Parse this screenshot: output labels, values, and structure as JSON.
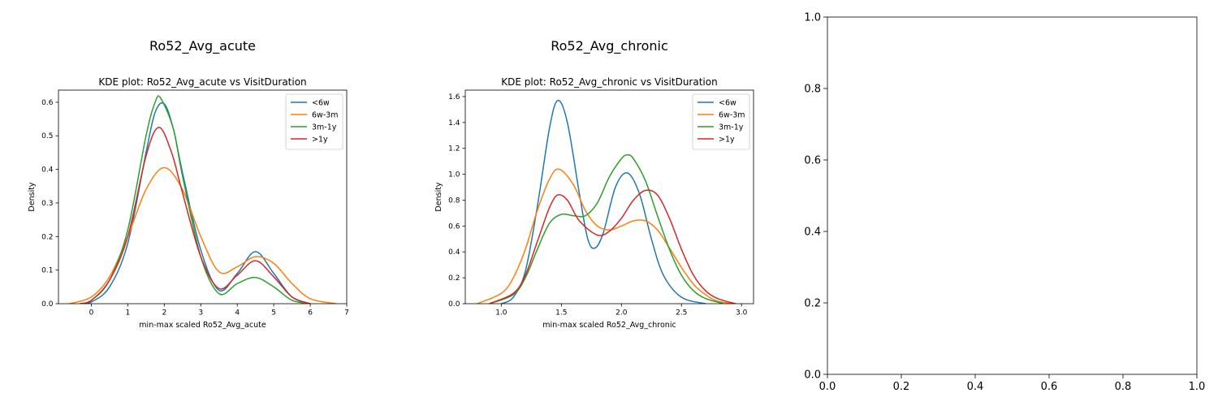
{
  "chart_data": [
    {
      "type": "line",
      "suptitle": "Ro52_Avg_acute",
      "title": "KDE plot:  Ro52_Avg_acute vs VisitDuration",
      "xlabel": "min-max scaled Ro52_Avg_acute",
      "ylabel": "Density",
      "xlim": [
        -0.9,
        7.0
      ],
      "ylim": [
        0,
        0.636
      ],
      "xticks": [
        0,
        1,
        2,
        3,
        4,
        5,
        6,
        7
      ],
      "yticks": [
        0.0,
        0.1,
        0.2,
        0.3,
        0.4,
        0.5,
        0.6
      ],
      "grid": false,
      "legend_position": "top-right",
      "series": [
        {
          "name": "<6w",
          "color": "#1f77b4",
          "x": [
            -0.3,
            0,
            0.5,
            1.0,
            1.5,
            1.75,
            2.0,
            2.25,
            2.5,
            3.0,
            3.5,
            4.0,
            4.5,
            5.0,
            5.5,
            6.0
          ],
          "y": [
            0.0,
            0.005,
            0.05,
            0.18,
            0.45,
            0.57,
            0.595,
            0.52,
            0.39,
            0.16,
            0.04,
            0.09,
            0.155,
            0.09,
            0.02,
            0.0
          ]
        },
        {
          "name": "6w-3m",
          "color": "#ff7f0e",
          "x": [
            -0.6,
            0,
            0.5,
            1.0,
            1.5,
            2.0,
            2.5,
            3.0,
            3.5,
            4.0,
            4.5,
            5.0,
            5.5,
            6.0,
            6.7
          ],
          "y": [
            0.0,
            0.02,
            0.08,
            0.2,
            0.34,
            0.405,
            0.34,
            0.2,
            0.095,
            0.11,
            0.14,
            0.12,
            0.06,
            0.015,
            0.0
          ]
        },
        {
          "name": "3m-1y",
          "color": "#2ca02c",
          "x": [
            -0.3,
            0,
            0.5,
            1.0,
            1.5,
            1.75,
            1.9,
            2.25,
            2.5,
            3.0,
            3.5,
            4.0,
            4.5,
            5.0,
            5.5,
            6.0
          ],
          "y": [
            0.0,
            0.01,
            0.07,
            0.22,
            0.5,
            0.6,
            0.612,
            0.52,
            0.38,
            0.14,
            0.03,
            0.06,
            0.078,
            0.05,
            0.01,
            0.0
          ]
        },
        {
          "name": ">1y",
          "color": "#d62728",
          "x": [
            -0.3,
            0,
            0.5,
            1.0,
            1.5,
            1.85,
            2.2,
            2.5,
            3.0,
            3.5,
            4.0,
            4.5,
            5.0,
            5.5,
            6.0
          ],
          "y": [
            0.0,
            0.01,
            0.07,
            0.2,
            0.44,
            0.525,
            0.45,
            0.33,
            0.14,
            0.045,
            0.085,
            0.128,
            0.08,
            0.02,
            0.0
          ]
        }
      ]
    },
    {
      "type": "line",
      "suptitle": "Ro52_Avg_chronic",
      "title": "KDE plot:  Ro52_Avg_chronic vs VisitDuration",
      "xlabel": "min-max scaled Ro52_Avg_chronic",
      "ylabel": "Density",
      "xlim": [
        0.7,
        3.1
      ],
      "ylim": [
        0,
        1.65
      ],
      "xticks": [
        1.0,
        1.5,
        2.0,
        2.5,
        3.0
      ],
      "yticks": [
        0.0,
        0.2,
        0.4,
        0.6,
        0.8,
        1.0,
        1.2,
        1.4,
        1.6
      ],
      "grid": false,
      "legend_position": "top-right",
      "series": [
        {
          "name": "<6w",
          "color": "#1f77b4",
          "x": [
            1.0,
            1.1,
            1.2,
            1.3,
            1.4,
            1.47,
            1.55,
            1.65,
            1.72,
            1.78,
            1.85,
            1.95,
            2.05,
            2.15,
            2.25,
            2.35,
            2.5,
            2.7
          ],
          "y": [
            0.0,
            0.05,
            0.25,
            0.75,
            1.35,
            1.57,
            1.4,
            0.85,
            0.5,
            0.43,
            0.55,
            0.9,
            1.01,
            0.85,
            0.5,
            0.22,
            0.05,
            0.0
          ]
        },
        {
          "name": "6w-3m",
          "color": "#ff7f0e",
          "x": [
            0.8,
            1.0,
            1.1,
            1.2,
            1.3,
            1.4,
            1.48,
            1.6,
            1.7,
            1.8,
            1.9,
            2.0,
            2.1,
            2.2,
            2.3,
            2.4,
            2.5,
            2.6,
            2.7,
            2.8,
            2.95
          ],
          "y": [
            0.0,
            0.08,
            0.2,
            0.42,
            0.72,
            0.96,
            1.04,
            0.92,
            0.72,
            0.6,
            0.57,
            0.6,
            0.64,
            0.64,
            0.57,
            0.43,
            0.28,
            0.15,
            0.07,
            0.02,
            0.0
          ]
        },
        {
          "name": "3m-1y",
          "color": "#2ca02c",
          "x": [
            0.9,
            1.1,
            1.2,
            1.3,
            1.4,
            1.5,
            1.6,
            1.7,
            1.8,
            1.9,
            2.0,
            2.05,
            2.1,
            2.2,
            2.3,
            2.4,
            2.5,
            2.6,
            2.7,
            2.85
          ],
          "y": [
            0.0,
            0.07,
            0.2,
            0.42,
            0.62,
            0.69,
            0.68,
            0.68,
            0.78,
            0.98,
            1.12,
            1.15,
            1.12,
            0.95,
            0.68,
            0.42,
            0.22,
            0.1,
            0.04,
            0.0
          ]
        },
        {
          "name": ">1y",
          "color": "#d62728",
          "x": [
            0.9,
            1.1,
            1.2,
            1.3,
            1.4,
            1.47,
            1.55,
            1.65,
            1.8,
            1.9,
            2.0,
            2.1,
            2.2,
            2.3,
            2.4,
            2.5,
            2.6,
            2.7,
            2.8,
            2.95
          ],
          "y": [
            0.0,
            0.08,
            0.22,
            0.48,
            0.74,
            0.84,
            0.8,
            0.64,
            0.53,
            0.56,
            0.66,
            0.8,
            0.875,
            0.84,
            0.66,
            0.42,
            0.22,
            0.1,
            0.04,
            0.0
          ]
        }
      ]
    },
    {
      "type": "line",
      "xlim": [
        0,
        1
      ],
      "ylim": [
        0,
        1
      ],
      "xticks": [
        0.0,
        0.2,
        0.4,
        0.6,
        0.8,
        1.0
      ],
      "yticks": [
        0.0,
        0.2,
        0.4,
        0.6,
        0.8,
        1.0
      ],
      "grid": false,
      "series": []
    }
  ]
}
